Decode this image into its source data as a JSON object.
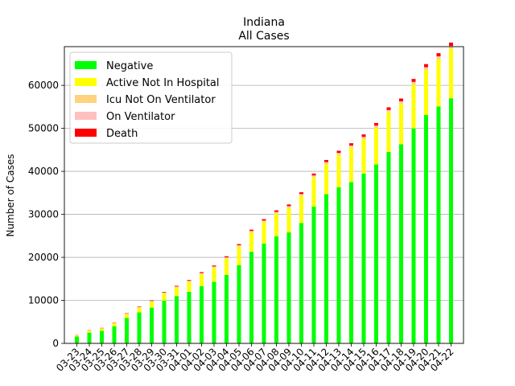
{
  "chart_data": {
    "type": "bar",
    "stacked": true,
    "title": "Indiana",
    "subtitle": "All Cases",
    "xlabel": "",
    "ylabel": "Number of Cases",
    "ylim": [
      0,
      69000
    ],
    "yticks": [
      0,
      10000,
      20000,
      30000,
      40000,
      50000,
      60000
    ],
    "grid": "y",
    "legend_position": "upper-left",
    "categories": [
      "03-23",
      "03-24",
      "03-25",
      "03-26",
      "03-27",
      "03-28",
      "03-29",
      "03-30",
      "03-31",
      "04-01",
      "04-02",
      "04-03",
      "04-04",
      "04-05",
      "04-06",
      "04-07",
      "04-08",
      "04-09",
      "04-10",
      "04-11",
      "04-12",
      "04-13",
      "04-14",
      "04-15",
      "04-16",
      "04-17",
      "04-18",
      "04-19",
      "04-20",
      "04-21",
      "04-22"
    ],
    "series": [
      {
        "name": "Negative",
        "color": "#00ff00",
        "values": [
          1600,
          2500,
          2900,
          4000,
          5900,
          7200,
          8300,
          9900,
          11000,
          12000,
          13300,
          14300,
          15900,
          18200,
          21300,
          23200,
          24900,
          25800,
          28000,
          31800,
          34700,
          36300,
          37500,
          39500,
          41600,
          44500,
          46300,
          50000,
          53100,
          55100,
          57000
        ]
      },
      {
        "name": "Active Not In Hospital",
        "color": "#ffff00",
        "values": [
          250,
          450,
          550,
          650,
          900,
          1150,
          1400,
          1700,
          2000,
          2300,
          2800,
          3300,
          3800,
          4300,
          4500,
          5000,
          5300,
          5700,
          6300,
          6800,
          7000,
          7500,
          8000,
          8000,
          8500,
          9200,
          9400,
          10200,
          10500,
          11000,
          11500
        ]
      },
      {
        "name": "Icu Not On Ventilator",
        "color": "#ffd27f",
        "values": [
          20,
          30,
          40,
          50,
          60,
          80,
          90,
          100,
          120,
          140,
          150,
          160,
          170,
          180,
          190,
          200,
          210,
          220,
          230,
          240,
          250,
          260,
          270,
          280,
          290,
          300,
          310,
          320,
          330,
          340,
          350
        ]
      },
      {
        "name": "On Ventilator",
        "color": "#ffc0c0",
        "values": [
          10,
          20,
          30,
          40,
          50,
          60,
          70,
          80,
          90,
          100,
          110,
          120,
          130,
          140,
          150,
          160,
          170,
          180,
          190,
          200,
          210,
          220,
          230,
          240,
          250,
          260,
          270,
          280,
          290,
          300,
          310
        ]
      },
      {
        "name": "Death",
        "color": "#ff0000",
        "values": [
          50,
          60,
          70,
          80,
          90,
          110,
          130,
          150,
          170,
          190,
          210,
          230,
          250,
          270,
          300,
          330,
          360,
          390,
          420,
          450,
          480,
          510,
          540,
          570,
          600,
          630,
          660,
          690,
          720,
          750,
          790
        ]
      }
    ]
  }
}
